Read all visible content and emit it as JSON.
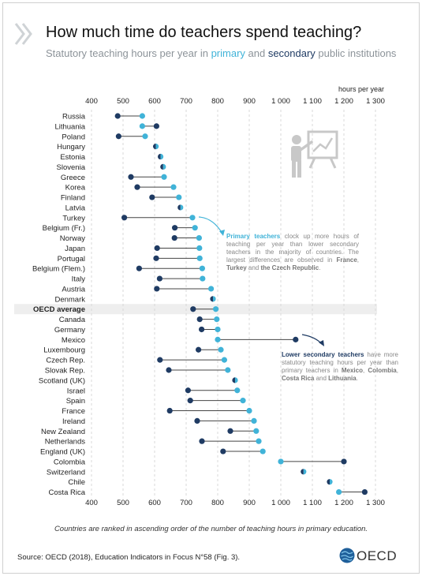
{
  "header": {
    "title": "How much time do teachers spend teaching?",
    "subtitle_prefix": "Statutory teaching hours per year in ",
    "subtitle_primary": "primary",
    "subtitle_and": " and ",
    "subtitle_secondary": "secondary",
    "subtitle_suffix": " public institutions",
    "unit_label": "hours per year"
  },
  "notes": {
    "primary": {
      "bold": "Primary teachers",
      "text1": " clock up more hours of teaching per year than lower secondary teachers in the majority of countries. The largest differences are observed in ",
      "c1": "France",
      "sep1": ", ",
      "c2": "Turkey",
      "sep2": " and ",
      "c3": "the Czech Republic",
      "end": "."
    },
    "secondary": {
      "bold": "Lower secondary teachers",
      "text1": " have more statutory teaching hours per year than primary teachers in ",
      "c1": "Mexico",
      "sep1": ", ",
      "c2": "Colombia",
      "sep2": ", ",
      "c3": "Costa Rica",
      "sep3": " and ",
      "c4": "Lithuania",
      "end": "."
    }
  },
  "footnote": "Countries are ranked in ascending order of the number of teaching hours in primary education.",
  "source": "Source: OECD (2018), Education Indicators in Focus N°58 (Fig. 3).",
  "logo_text": "OECD",
  "icon": "teacher-at-board-icon",
  "colors": {
    "primary": "#40b3d8",
    "secondary": "#1f3b63",
    "connector": "#444444",
    "highlight_row": "#eeeeee"
  },
  "chart_data": {
    "type": "dumbbell",
    "xlim": [
      400,
      1300
    ],
    "xticks": [
      400,
      500,
      600,
      700,
      800,
      900,
      1000,
      1100,
      1200,
      1300
    ],
    "xtick_labels": [
      "400",
      "500",
      "600",
      "700",
      "800",
      "900",
      "1 000",
      "1 100",
      "1 200",
      "1 300"
    ],
    "grid": "vertical-dashed",
    "highlight_category": "OECD average",
    "categories": [
      "Russia",
      "Lithuania",
      "Poland",
      "Hungary",
      "Estonia",
      "Slovenia",
      "Greece",
      "Korea",
      "Finland",
      "Latvia",
      "Turkey",
      "Belgium (Fr.)",
      "Norway",
      "Japan",
      "Portugal",
      "Belgium (Flem.)",
      "Italy",
      "Austria",
      "Denmark",
      "OECD average",
      "Canada",
      "Germany",
      "Mexico",
      "Luxembourg",
      "Czech Rep.",
      "Slovak Rep.",
      "Scotland (UK)",
      "Israel",
      "Spain",
      "France",
      "Ireland",
      "New Zealand",
      "Netherlands",
      "England (UK)",
      "Colombia",
      "Switzerland",
      "Chile",
      "Costa Rica"
    ],
    "series": [
      {
        "name": "primary",
        "values": [
          561,
          561,
          570,
          604,
          619,
          627,
          630,
          660,
          677,
          682,
          720,
          728,
          741,
          742,
          743,
          751,
          752,
          779,
          785,
          794,
          797,
          800,
          800,
          810,
          821,
          832,
          855,
          862,
          880,
          900,
          915,
          922,
          930,
          943,
          1000,
          1072,
          1155,
          1184
        ]
      },
      {
        "name": "secondary",
        "values": [
          483,
          606,
          486,
          604,
          619,
          627,
          525,
          545,
          592,
          682,
          504,
          664,
          663,
          608,
          605,
          551,
          616,
          607,
          785,
          722,
          743,
          749,
          1047,
          739,
          617,
          645,
          855,
          706,
          713,
          648,
          735,
          840,
          750,
          817,
          1200,
          1072,
          1155,
          1266
        ]
      }
    ]
  }
}
